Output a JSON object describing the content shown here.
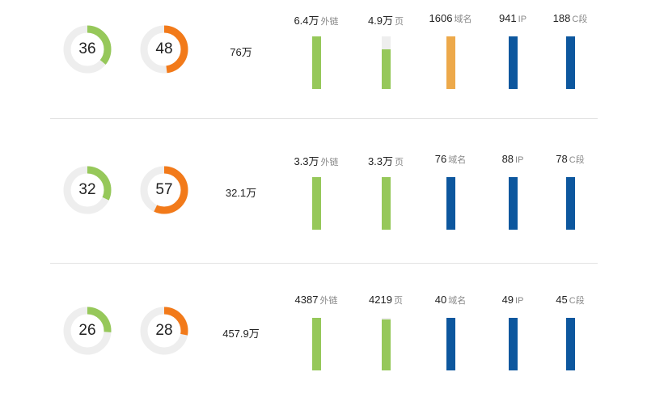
{
  "colors": {
    "green": "#96c85a",
    "orange": "#f27a1a",
    "amber": "#eda94a",
    "blue": "#0d579e",
    "track": "#eeeeee"
  },
  "rows": [
    {
      "score_a": "36",
      "score_a_pct": 36,
      "score_b": "48",
      "score_b_pct": 48,
      "total": "76万",
      "metrics": [
        {
          "value": "6.4万",
          "unit": "外链",
          "fill": 1.0,
          "color": "green"
        },
        {
          "value": "4.9万",
          "unit": "页",
          "fill": 0.75,
          "color": "green"
        },
        {
          "value": "1606",
          "unit": "域名",
          "fill": 1.0,
          "color": "amber"
        },
        {
          "value": "941",
          "unit": "IP",
          "fill": 1.0,
          "color": "blue"
        },
        {
          "value": "188",
          "unit": "C段",
          "fill": 1.0,
          "color": "blue"
        }
      ]
    },
    {
      "score_a": "32",
      "score_a_pct": 32,
      "score_b": "57",
      "score_b_pct": 57,
      "total": "32.1万",
      "metrics": [
        {
          "value": "3.3万",
          "unit": "外链",
          "fill": 1.0,
          "color": "green"
        },
        {
          "value": "3.3万",
          "unit": "页",
          "fill": 1.0,
          "color": "green"
        },
        {
          "value": "76",
          "unit": "域名",
          "fill": 1.0,
          "color": "blue"
        },
        {
          "value": "88",
          "unit": "IP",
          "fill": 1.0,
          "color": "blue"
        },
        {
          "value": "78",
          "unit": "C段",
          "fill": 1.0,
          "color": "blue"
        }
      ]
    },
    {
      "score_a": "26",
      "score_a_pct": 26,
      "score_b": "28",
      "score_b_pct": 28,
      "total": "457.9万",
      "metrics": [
        {
          "value": "4387",
          "unit": "外链",
          "fill": 1.0,
          "color": "green"
        },
        {
          "value": "4219",
          "unit": "页",
          "fill": 0.97,
          "color": "green"
        },
        {
          "value": "40",
          "unit": "域名",
          "fill": 1.0,
          "color": "blue"
        },
        {
          "value": "49",
          "unit": "IP",
          "fill": 1.0,
          "color": "blue"
        },
        {
          "value": "45",
          "unit": "C段",
          "fill": 1.0,
          "color": "blue"
        }
      ]
    }
  ]
}
